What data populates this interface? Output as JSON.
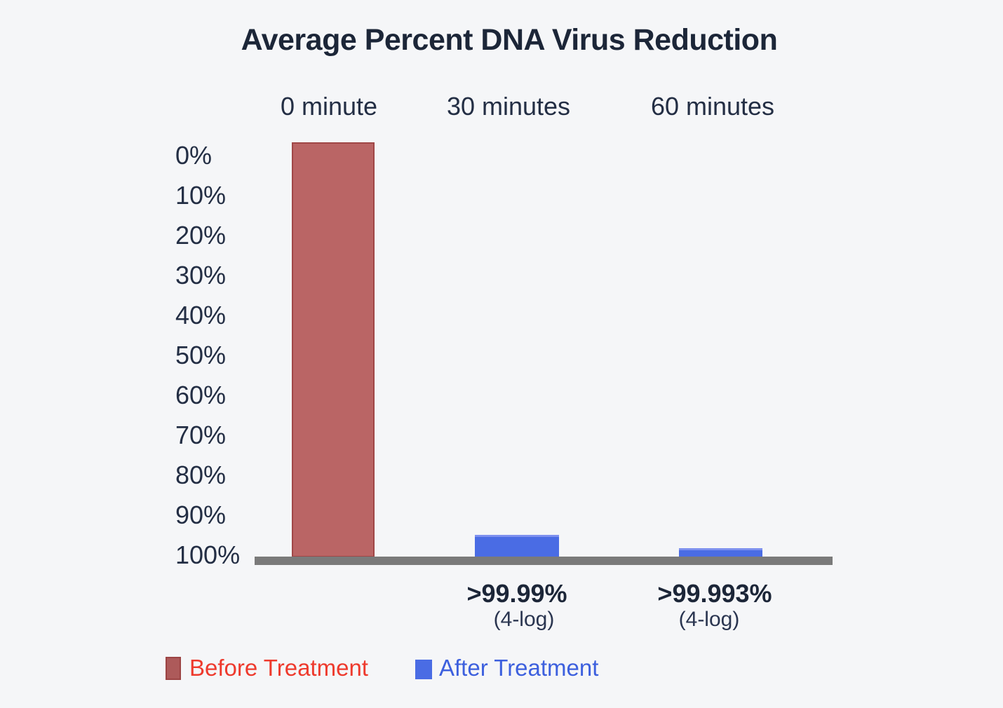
{
  "page": {
    "background_color": "#f5f6f8"
  },
  "chart": {
    "title": "Average Percent DNA Virus Reduction",
    "title_color": "#1c2638",
    "text_color": "#232e44",
    "axis_line_color": "#7a7a7a",
    "categories": [
      "0 minute",
      "30 minutes",
      "60 minutes"
    ],
    "y_ticks": [
      "0%",
      "10%",
      "20%",
      "30%",
      "40%",
      "50%",
      "60%",
      "70%",
      "80%",
      "90%",
      "100%"
    ],
    "annotations": [
      {
        "value": ">99.99%",
        "note": "(4-log)"
      },
      {
        "value": ">99.993%",
        "note": "(4-log)"
      }
    ],
    "legend": [
      {
        "label": "Before Treatment",
        "swatch_color": "#ad5a5a",
        "swatch_border": "#9c4444",
        "text_color": "#ee3a2d"
      },
      {
        "label": "After Treatment",
        "swatch_color": "#4a6ce4",
        "swatch_border": "#4a6ce4",
        "text_color": "#3d60de"
      }
    ]
  },
  "chart_data": {
    "type": "bar",
    "title": "Average Percent DNA Virus Reduction",
    "categories": [
      "0 minute",
      "30 minutes",
      "60 minutes"
    ],
    "y_axis": {
      "ticks": [
        "0%",
        "10%",
        "20%",
        "30%",
        "40%",
        "50%",
        "60%",
        "70%",
        "80%",
        "90%",
        "100%"
      ],
      "inverted": true,
      "range": [
        0,
        100
      ],
      "note": "0% at top, 100% at bottom baseline"
    },
    "grid": false,
    "legend_position": "bottom-left",
    "category_label_position": "top",
    "series": [
      {
        "name": "Before Treatment",
        "color": "#ba6565",
        "data": [
          {
            "category": "0 minute",
            "drawn_extent_pct": 103.3
          }
        ]
      },
      {
        "name": "After Treatment",
        "color": "#4a6ce4",
        "data": [
          {
            "category": "30 minutes",
            "drawn_extent_pct": 5.6,
            "label": ">99.99%",
            "sublabel": "(4-log)"
          },
          {
            "category": "60 minutes",
            "drawn_extent_pct": 2.3,
            "label": ">99.993%",
            "sublabel": "(4-log)"
          }
        ]
      }
    ],
    "bars_drawn": [
      {
        "series": "Before Treatment",
        "category": "0 minute",
        "extent_pct": 103.3,
        "fill": "#ba6565",
        "border": "#a04747"
      },
      {
        "series": "After Treatment",
        "category": "30 minutes",
        "extent_pct": 5.6,
        "fill": "#4a6ce4",
        "border": "#7e91ef"
      },
      {
        "series": "After Treatment",
        "category": "60 minutes",
        "extent_pct": 2.3,
        "fill": "#4a6ce4",
        "border": "#7e91ef"
      }
    ]
  }
}
